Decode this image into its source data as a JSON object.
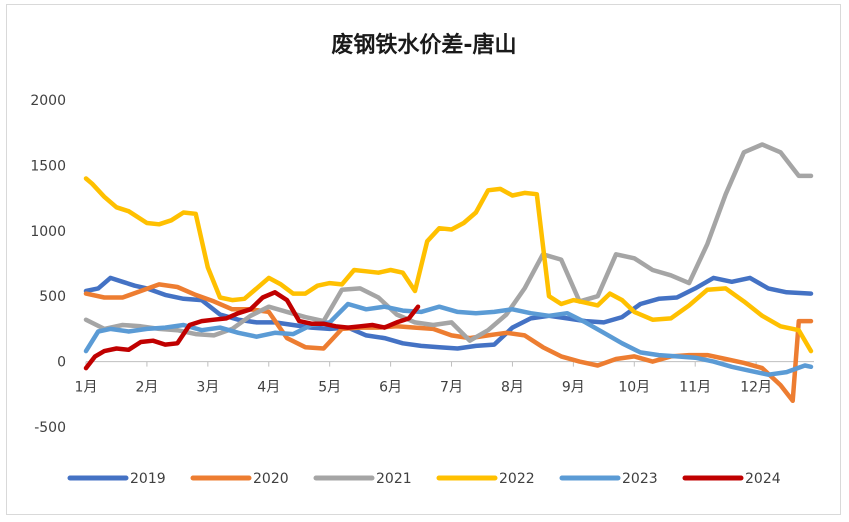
{
  "chart_data": {
    "type": "line",
    "title": "废钢铁水价差-唐山",
    "xlabel": "",
    "ylabel": "",
    "ylim": [
      -500,
      2000
    ],
    "yticks": [
      -500,
      0,
      500,
      1000,
      1500,
      2000
    ],
    "categories": [
      "1月",
      "2月",
      "3月",
      "4月",
      "5月",
      "6月",
      "7月",
      "8月",
      "9月",
      "10月",
      "11月",
      "12月"
    ],
    "grid": false,
    "legend": "bottom",
    "series": [
      {
        "name": "2019",
        "color": "#4472C4",
        "x": [
          1,
          1.2,
          1.4,
          1.6,
          1.8,
          2,
          2.3,
          2.6,
          2.9,
          3.2,
          3.5,
          3.8,
          4.1,
          4.4,
          4.7,
          5,
          5.3,
          5.6,
          5.9,
          6.2,
          6.5,
          6.8,
          7.1,
          7.4,
          7.7,
          8,
          8.3,
          8.6,
          8.9,
          9.2,
          9.5,
          9.8,
          10.1,
          10.4,
          10.7,
          11,
          11.3,
          11.6,
          11.9,
          12.2,
          12.5,
          12.9
        ],
        "y": [
          540,
          560,
          640,
          610,
          580,
          560,
          510,
          480,
          470,
          360,
          320,
          300,
          300,
          280,
          260,
          250,
          260,
          200,
          180,
          140,
          120,
          110,
          100,
          120,
          130,
          260,
          330,
          350,
          330,
          310,
          300,
          340,
          440,
          480,
          490,
          560,
          640,
          610,
          640,
          560,
          530,
          520
        ]
      },
      {
        "name": "2020",
        "color": "#ED7D31",
        "x": [
          1,
          1.3,
          1.6,
          1.9,
          2.2,
          2.5,
          2.8,
          3.1,
          3.4,
          3.7,
          4,
          4.3,
          4.6,
          4.9,
          5.2,
          5.5,
          5.8,
          6.1,
          6.4,
          6.7,
          7,
          7.3,
          7.6,
          7.9,
          8.2,
          8.5,
          8.8,
          9.1,
          9.4,
          9.7,
          10,
          10.3,
          10.6,
          10.9,
          11.2,
          11.5,
          11.8,
          12.1,
          12.4,
          12.6,
          12.7,
          12.9
        ],
        "y": [
          520,
          490,
          490,
          540,
          590,
          570,
          510,
          460,
          400,
          400,
          380,
          180,
          110,
          100,
          250,
          260,
          260,
          270,
          260,
          250,
          200,
          180,
          200,
          220,
          200,
          110,
          40,
          0,
          -30,
          20,
          40,
          0,
          40,
          50,
          50,
          20,
          -10,
          -50,
          -180,
          -300,
          310,
          310
        ]
      },
      {
        "name": "2021",
        "color": "#A5A5A5",
        "x": [
          1,
          1.3,
          1.6,
          1.9,
          2.2,
          2.5,
          2.8,
          3.1,
          3.4,
          3.7,
          4,
          4.3,
          4.6,
          4.9,
          5.2,
          5.5,
          5.8,
          6.1,
          6.4,
          6.7,
          7,
          7.3,
          7.6,
          7.9,
          8.2,
          8.5,
          8.8,
          9.1,
          9.4,
          9.7,
          10,
          10.3,
          10.6,
          10.9,
          11.2,
          11.5,
          11.8,
          12.1,
          12.4,
          12.7,
          12.9
        ],
        "y": [
          320,
          250,
          280,
          270,
          250,
          240,
          210,
          200,
          250,
          350,
          420,
          380,
          340,
          310,
          550,
          560,
          490,
          360,
          300,
          280,
          300,
          160,
          240,
          360,
          560,
          820,
          780,
          460,
          500,
          820,
          790,
          700,
          660,
          600,
          900,
          1280,
          1600,
          1660,
          1600,
          1420,
          1420
        ]
      },
      {
        "name": "2022",
        "color": "#FFC000",
        "x": [
          1,
          1.1,
          1.3,
          1.5,
          1.7,
          2,
          2.2,
          2.4,
          2.6,
          2.8,
          3,
          3.2,
          3.4,
          3.6,
          3.8,
          4,
          4.2,
          4.4,
          4.6,
          4.8,
          5,
          5.2,
          5.4,
          5.6,
          5.8,
          6,
          6.2,
          6.4,
          6.6,
          6.8,
          7,
          7.2,
          7.4,
          7.6,
          7.8,
          8,
          8.2,
          8.4,
          8.6,
          8.8,
          9,
          9.2,
          9.4,
          9.6,
          9.8,
          10,
          10.3,
          10.6,
          10.9,
          11.2,
          11.5,
          11.8,
          12.1,
          12.4,
          12.7,
          12.9
        ],
        "y": [
          1400,
          1360,
          1260,
          1180,
          1150,
          1060,
          1050,
          1080,
          1140,
          1130,
          720,
          490,
          470,
          480,
          560,
          640,
          590,
          520,
          520,
          580,
          600,
          590,
          700,
          690,
          680,
          700,
          680,
          540,
          920,
          1020,
          1010,
          1060,
          1140,
          1310,
          1320,
          1270,
          1290,
          1280,
          500,
          440,
          470,
          450,
          430,
          520,
          470,
          380,
          320,
          330,
          430,
          550,
          560,
          460,
          350,
          270,
          240,
          80
        ]
      },
      {
        "name": "2023",
        "color": "#5B9BD5",
        "x": [
          1,
          1.2,
          1.4,
          1.7,
          2,
          2.3,
          2.6,
          2.9,
          3.2,
          3.5,
          3.8,
          4.1,
          4.4,
          4.7,
          5,
          5.3,
          5.6,
          5.9,
          6.2,
          6.5,
          6.8,
          7.1,
          7.4,
          7.7,
          8,
          8.3,
          8.6,
          8.9,
          9.2,
          9.5,
          9.8,
          10.1,
          10.4,
          10.7,
          11,
          11.3,
          11.6,
          11.9,
          12.2,
          12.5,
          12.8,
          12.9
        ],
        "y": [
          80,
          230,
          250,
          230,
          250,
          260,
          280,
          240,
          260,
          220,
          190,
          220,
          210,
          280,
          300,
          440,
          400,
          420,
          390,
          380,
          420,
          380,
          370,
          380,
          400,
          370,
          350,
          370,
          300,
          220,
          140,
          70,
          50,
          40,
          30,
          0,
          -40,
          -70,
          -100,
          -80,
          -30,
          -40
        ]
      },
      {
        "name": "2024",
        "color": "#C00000",
        "x": [
          1,
          1.15,
          1.3,
          1.5,
          1.7,
          1.9,
          2.1,
          2.3,
          2.5,
          2.7,
          2.9,
          3.1,
          3.3,
          3.5,
          3.7,
          3.9,
          4.1,
          4.3,
          4.5,
          4.7,
          4.9,
          5.1,
          5.3,
          5.5,
          5.7,
          5.9,
          6.1,
          6.3,
          6.45
        ],
        "y": [
          -50,
          40,
          80,
          100,
          90,
          150,
          160,
          130,
          140,
          280,
          310,
          320,
          330,
          370,
          400,
          490,
          530,
          470,
          310,
          290,
          290,
          270,
          260,
          270,
          280,
          260,
          300,
          330,
          420
        ]
      }
    ]
  }
}
